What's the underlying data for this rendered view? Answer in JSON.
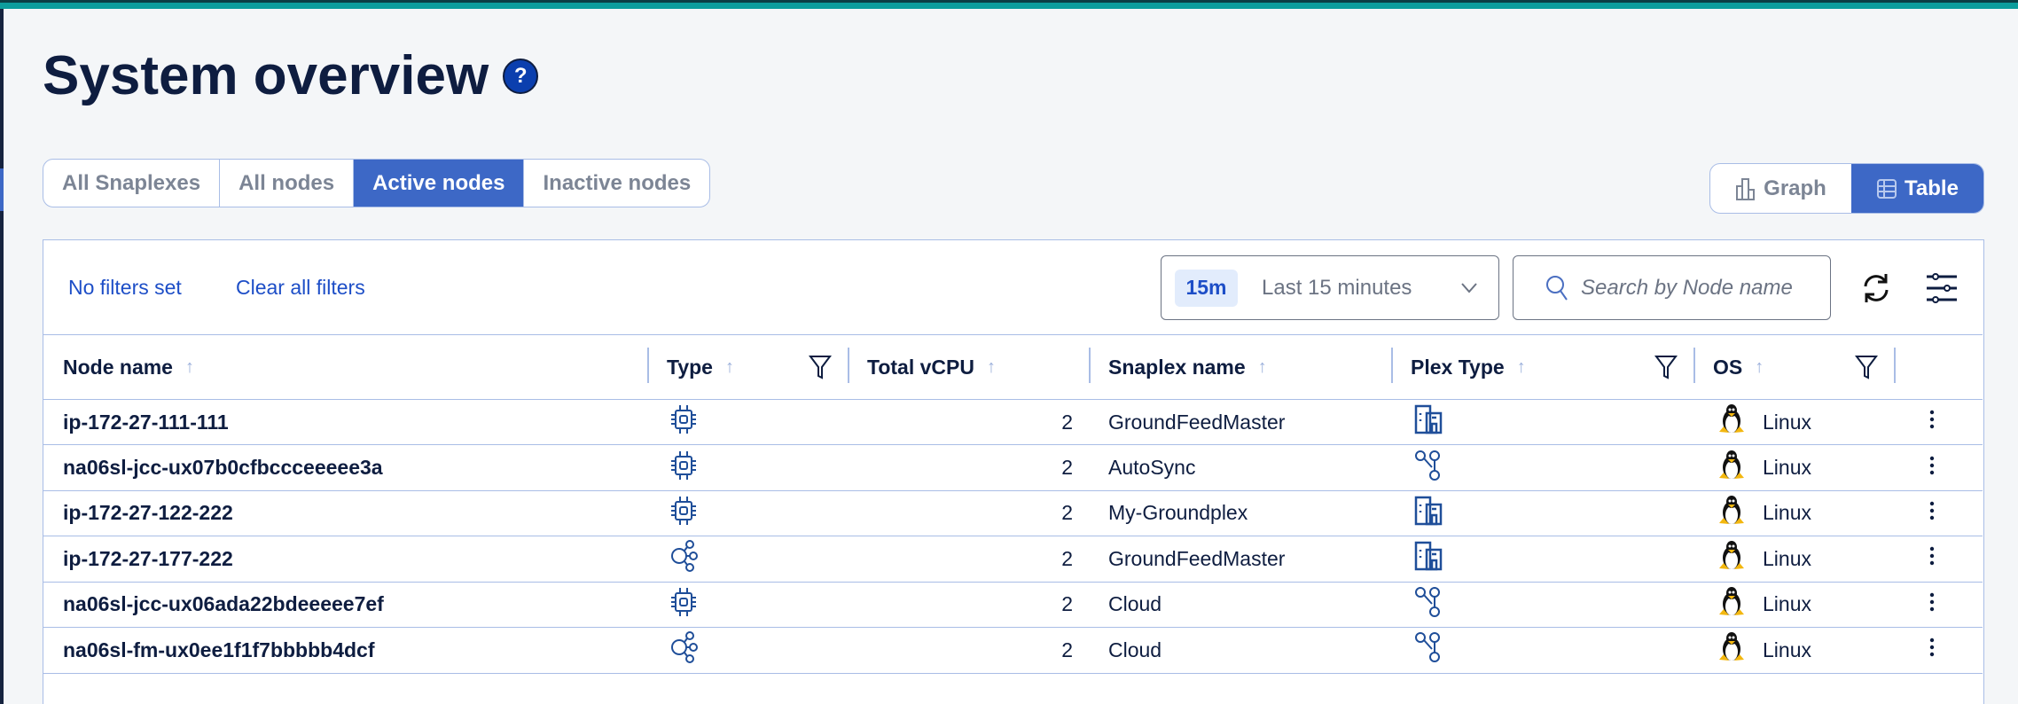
{
  "page": {
    "title": "System overview",
    "help_icon": "question-circle-icon",
    "help_glyph": "?"
  },
  "colors": {
    "accent": "#3d68c6",
    "top_bar": "#0c9d9c",
    "text": "#0e1d40",
    "link": "#1d4ec7",
    "border": "#a9bde6"
  },
  "tabs": [
    {
      "label": "All Snaplexes",
      "active": false
    },
    {
      "label": "All nodes",
      "active": false
    },
    {
      "label": "Active nodes",
      "active": true
    },
    {
      "label": "Inactive nodes",
      "active": false
    }
  ],
  "view_toggle": {
    "graph_label": "Graph",
    "table_label": "Table",
    "selected": "Table"
  },
  "filters": {
    "status": "No filters set",
    "clear_label": "Clear all filters"
  },
  "time_range": {
    "badge": "15m",
    "label": "Last 15 minutes"
  },
  "search": {
    "placeholder": "Search by Node name",
    "value": ""
  },
  "table": {
    "columns": [
      {
        "label": "Node name",
        "filter": false
      },
      {
        "label": "Type",
        "filter": true
      },
      {
        "label": "Total vCPU",
        "filter": false
      },
      {
        "label": "Snaplex name",
        "filter": false
      },
      {
        "label": "Plex Type",
        "filter": true
      },
      {
        "label": "OS",
        "filter": true
      }
    ],
    "rows": [
      {
        "node": "ip-172-27-111-111",
        "type_icon": "chip",
        "vcpu": "2",
        "snaplex": "GroundFeedMaster",
        "plex_icon": "building",
        "os": "Linux"
      },
      {
        "node": "na06sl-jcc-ux07b0cfbccceeeee3a",
        "type_icon": "chip",
        "vcpu": "2",
        "snaplex": "AutoSync",
        "plex_icon": "network",
        "os": "Linux"
      },
      {
        "node": "ip-172-27-122-222",
        "type_icon": "chip",
        "vcpu": "2",
        "snaplex": "My-Groundplex",
        "plex_icon": "building",
        "os": "Linux"
      },
      {
        "node": "ip-172-27-177-222",
        "type_icon": "cluster",
        "vcpu": "2",
        "snaplex": "GroundFeedMaster",
        "plex_icon": "building",
        "os": "Linux"
      },
      {
        "node": "na06sl-jcc-ux06ada22bdeeeee7ef",
        "type_icon": "chip",
        "vcpu": "2",
        "snaplex": "Cloud",
        "plex_icon": "network",
        "os": "Linux"
      },
      {
        "node": "na06sl-fm-ux0ee1f1f7bbbbb4dcf",
        "type_icon": "cluster",
        "vcpu": "2",
        "snaplex": "Cloud",
        "plex_icon": "network",
        "os": "Linux"
      }
    ]
  }
}
